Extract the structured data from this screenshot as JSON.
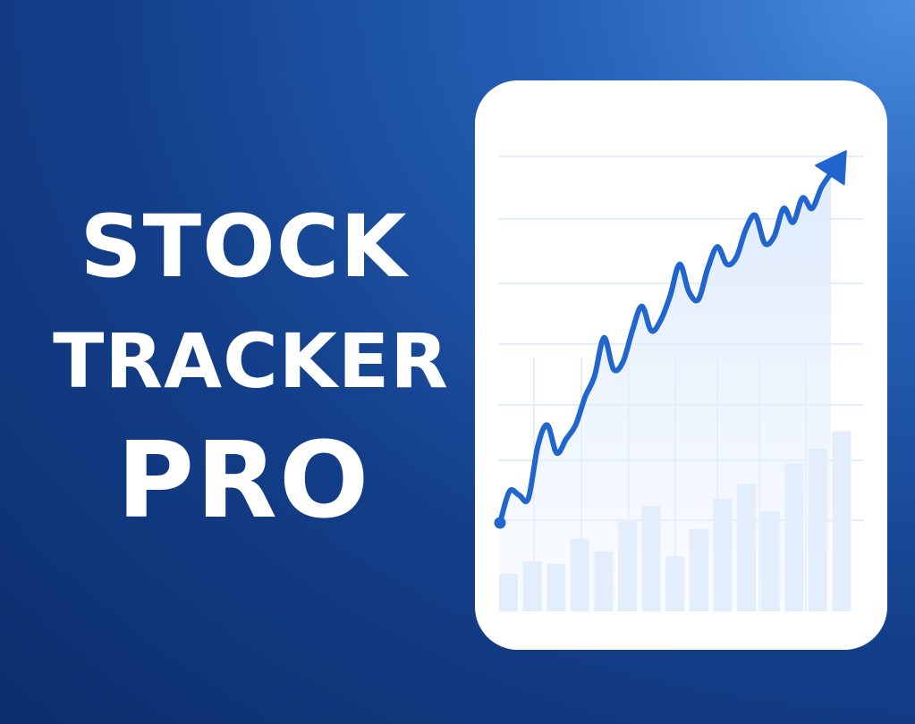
{
  "title_lines": [
    "STOCK",
    "TRACKER",
    "PRO"
  ],
  "colors": {
    "background_dark": "#0c2d6c",
    "background_light": "#4a8ddf",
    "line": "#2165cf",
    "bars": "#e3eefc",
    "grid": "#e4eefb",
    "card": "#ffffff"
  },
  "icons": {
    "trend_arrow": "arrow-up-right-icon"
  },
  "chart_data": {
    "type": "line",
    "title": "",
    "xlabel": "",
    "ylabel": "",
    "grid": true,
    "ylim": [
      0,
      100
    ],
    "x": [
      0,
      1,
      2,
      3,
      4,
      5,
      6,
      7,
      8,
      9,
      10,
      11,
      12,
      13,
      14,
      15,
      16,
      17,
      18,
      19,
      20,
      21,
      22,
      23,
      24,
      25,
      26,
      27,
      28,
      29,
      30,
      31,
      32,
      33,
      34,
      35
    ],
    "series": [
      {
        "values": [
          0,
          9,
          8,
          7,
          22,
          28,
          20,
          24,
          28,
          36,
          42,
          53,
          44,
          46,
          55,
          62,
          55,
          58,
          65,
          74,
          66,
          64,
          73,
          79,
          74,
          76,
          84,
          88,
          80,
          82,
          90,
          86,
          93,
          90,
          96,
          100
        ]
      }
    ],
    "bars": {
      "ylim": [
        0,
        100
      ],
      "values": [
        15,
        20,
        19,
        29,
        24,
        36,
        42,
        22,
        33,
        45,
        51,
        40,
        59,
        65,
        72
      ]
    }
  }
}
